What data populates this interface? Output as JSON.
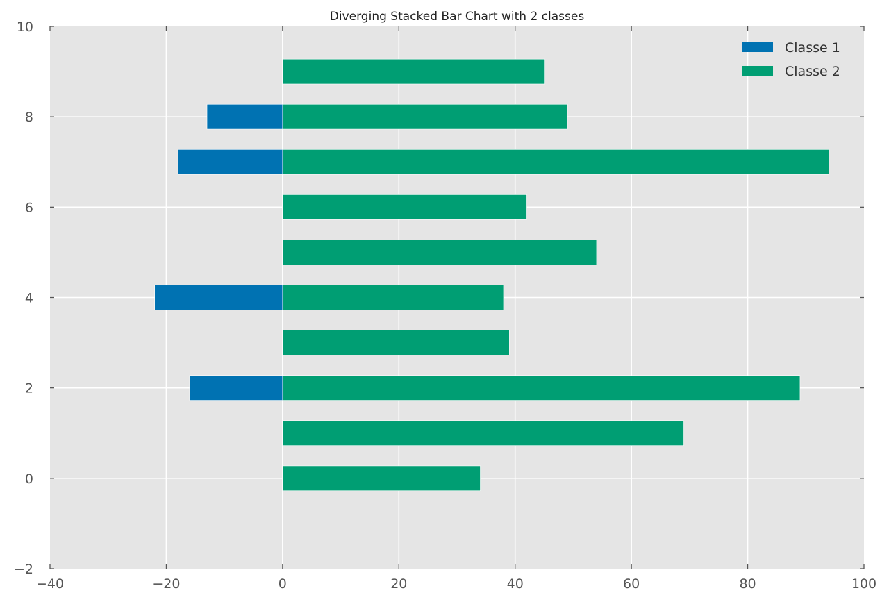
{
  "chart_data": {
    "type": "bar",
    "orientation": "horizontal",
    "stacking": "diverging",
    "title": "Diverging Stacked Bar Chart with 2 classes",
    "xlabel": "",
    "ylabel": "",
    "xlim": [
      -40,
      100
    ],
    "ylim": [
      -2,
      10
    ],
    "xticks": [
      -40,
      -20,
      0,
      20,
      40,
      60,
      80,
      100
    ],
    "yticks": [
      -2,
      0,
      2,
      4,
      6,
      8,
      10
    ],
    "xtick_labels": [
      "−40",
      "−20",
      "0",
      "20",
      "40",
      "60",
      "80",
      "100"
    ],
    "ytick_labels": [
      "−2",
      "0",
      "2",
      "4",
      "6",
      "8",
      "10"
    ],
    "categories": [
      0,
      1,
      2,
      3,
      4,
      5,
      6,
      7,
      8,
      9
    ],
    "bar_height": 0.55,
    "grid": true,
    "legend_position": "top-right",
    "background_color": "#e5e5e5",
    "grid_color": "#ffffff",
    "series": [
      {
        "name": "Classe 1",
        "color": "#0072b2",
        "values": [
          0,
          0,
          -16,
          0,
          -22,
          0,
          0,
          -18,
          -13,
          0
        ]
      },
      {
        "name": "Classe 2",
        "color": "#009e73",
        "values": [
          34,
          69,
          89,
          39,
          38,
          54,
          42,
          94,
          49,
          45
        ]
      }
    ]
  }
}
